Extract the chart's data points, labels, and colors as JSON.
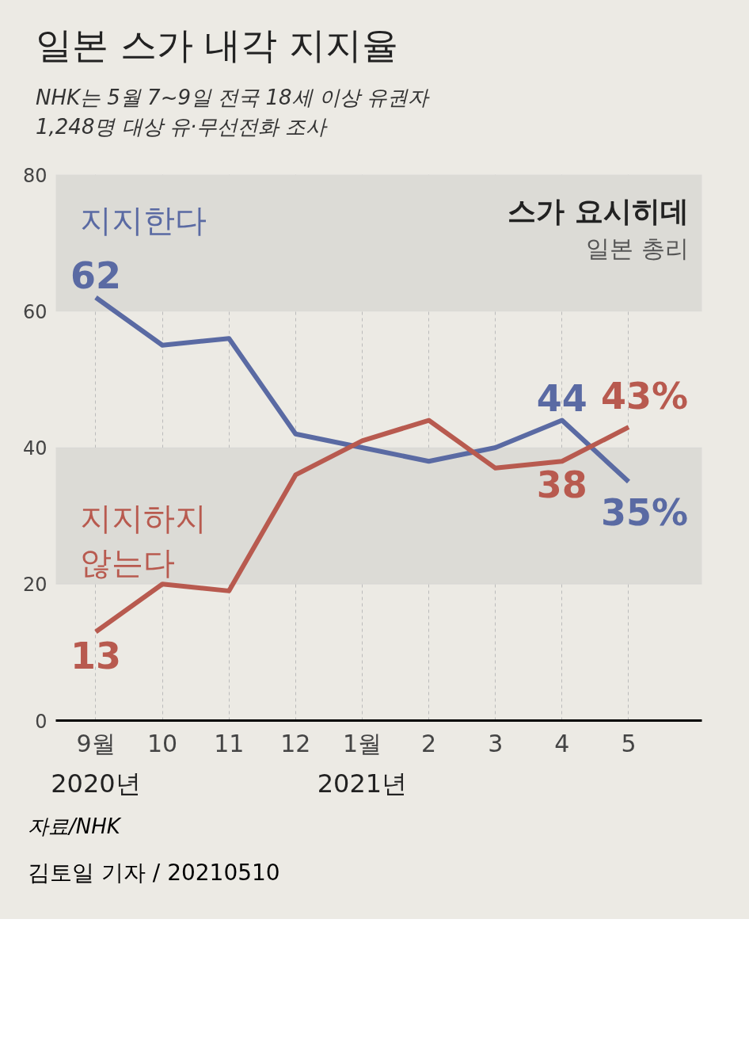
{
  "chart_data": {
    "type": "line",
    "title": "일본 스가 내각 지지율",
    "subtitle": "NHK는 5월 7~9일 전국 18세 이상 유권자\n1,248명 대상 유·무선전화 조사",
    "categories": [
      "9월",
      "10",
      "11",
      "12",
      "1월",
      "2",
      "3",
      "4",
      "5"
    ],
    "series": [
      {
        "name": "지지한다",
        "color": "#5a6aa3",
        "values": [
          62,
          55,
          56,
          42,
          40,
          38,
          40,
          44,
          35
        ],
        "value_labels": [
          "62",
          null,
          null,
          null,
          null,
          null,
          null,
          "44",
          "35%"
        ]
      },
      {
        "name": "지지하지\n않는다",
        "color": "#b85a4f",
        "values": [
          13,
          20,
          19,
          36,
          41,
          44,
          37,
          38,
          43
        ],
        "value_labels": [
          "13",
          null,
          null,
          null,
          null,
          null,
          null,
          "38",
          "43%"
        ]
      }
    ],
    "ylim": [
      0,
      80
    ],
    "yticks": [
      0,
      20,
      40,
      60,
      80
    ],
    "grid": "x",
    "marker": "none",
    "line_style": "solid",
    "legend": false,
    "bands": [
      {
        "axis": "y",
        "from": 60,
        "to": 80,
        "color": "#dcdbd6"
      },
      {
        "axis": "y",
        "from": 20,
        "to": 40,
        "color": "#dcdbd6"
      }
    ],
    "annotations": [
      "2020년",
      "2021년",
      "스가 요시히데",
      "일본 총리",
      "자료/NHK",
      "김토일 기자 / 20210510"
    ]
  }
}
